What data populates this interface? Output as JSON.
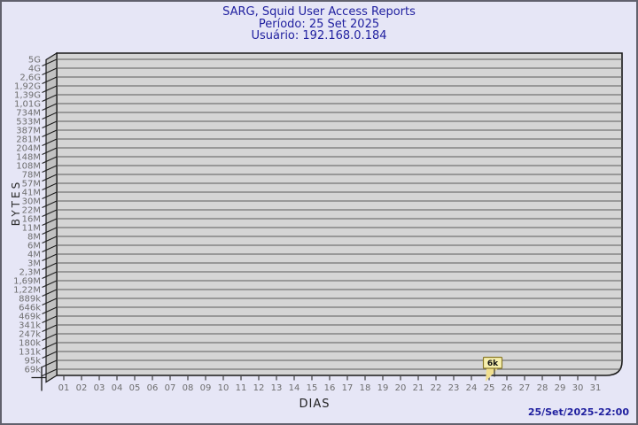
{
  "window": {
    "background_color": "#e6e6f6",
    "border_color": "#61616d"
  },
  "header": {
    "title": "SARG, Squid User Access Reports",
    "period_line": "Período: 25 Set 2025",
    "user_line": "Usuário: 192.168.0.184",
    "text_color": "#1f1f9f"
  },
  "footer": {
    "timestamp": "25/Set/2025-22:00"
  },
  "chart_data": {
    "type": "line",
    "title": "SARG, Squid User Access Reports",
    "subtitle": [
      "Período: 25 Set 2025",
      "Usuário: 192.168.0.184"
    ],
    "xlabel": "DIAS",
    "ylabel": "BYTES",
    "y_scale": "log",
    "grid": "horizontal",
    "legend_position": "none",
    "x_tick_labels": [
      "01",
      "02",
      "03",
      "04",
      "05",
      "06",
      "07",
      "08",
      "09",
      "10",
      "11",
      "12",
      "13",
      "14",
      "15",
      "16",
      "17",
      "18",
      "19",
      "20",
      "21",
      "22",
      "23",
      "24",
      "25",
      "26",
      "27",
      "28",
      "29",
      "30",
      "31"
    ],
    "y_tick_labels": [
      "5G",
      "4G",
      "2,6G",
      "1,92G",
      "1,39G",
      "1,01G",
      "734M",
      "533M",
      "387M",
      "281M",
      "204M",
      "148M",
      "108M",
      "78M",
      "57M",
      "41M",
      "30M",
      "22M",
      "16M",
      "11M",
      "8M",
      "6M",
      "4M",
      "3M",
      "2,3M",
      "1,69M",
      "1,22M",
      "889k",
      "646k",
      "469k",
      "341k",
      "247k",
      "180k",
      "131k",
      "95k",
      "69k"
    ],
    "y_axis_top_label": "5G",
    "y_axis_bottom_label": "69k",
    "points": [
      {
        "day": 25,
        "label": "6k",
        "value_bytes": 6000,
        "note": "below visible axis range, shown as flag marker at bottom"
      }
    ],
    "colors": {
      "plot_fill": "#d5d5d5",
      "wall_fill": "#c2c2c2",
      "gridline": "#5a5a5a",
      "axis_line": "#1a1a1a",
      "tick_text": "#6e6e6e",
      "marker_fill": "#f6efad",
      "marker_flag": "#f0df8f",
      "marker_border": "#8b7b2a",
      "marker_text": "#111111"
    }
  }
}
